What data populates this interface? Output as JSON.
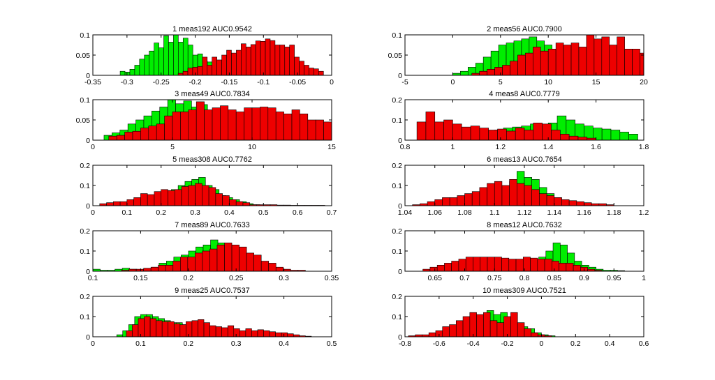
{
  "figure": {
    "background": "#ffffff"
  },
  "colors": {
    "series_a": "#00ee00",
    "series_b": "#ee0000",
    "edge": "#000000"
  },
  "chart_data": [
    {
      "type": "bar",
      "title": "1 meas192 AUC0.9542",
      "xlim": [
        -0.35,
        0
      ],
      "ylim": [
        0,
        0.1
      ],
      "xticks": [
        -0.35,
        -0.3,
        -0.25,
        -0.2,
        -0.15,
        -0.1,
        -0.05,
        0
      ],
      "xtick_labels": [
        "-0.35",
        "-0.3",
        "-0.25",
        "-0.2",
        "-0.15",
        "-0.1",
        "-0.05",
        "0"
      ],
      "yticks": [
        0,
        0.05,
        0.1
      ],
      "ytick_labels": [
        "0",
        "0.05",
        "0.1"
      ],
      "series": [
        {
          "color": "#00ee00",
          "x_start": -0.31,
          "bin_width": 0.0071,
          "values": [
            0.01,
            0.008,
            0.015,
            0.025,
            0.04,
            0.05,
            0.06,
            0.08,
            0.068,
            0.098,
            0.082,
            0.1,
            0.082,
            0.092,
            0.075,
            0.05,
            0.053,
            0.035,
            0.033,
            0.02,
            0.008,
            0.005
          ]
        },
        {
          "color": "#ee0000",
          "x_start": -0.225,
          "bin_width": 0.0071,
          "values": [
            0.005,
            0.01,
            0.018,
            0.02,
            0.022,
            0.045,
            0.025,
            0.045,
            0.038,
            0.05,
            0.062,
            0.055,
            0.062,
            0.078,
            0.07,
            0.076,
            0.085,
            0.084,
            0.09,
            0.086,
            0.075,
            0.075,
            0.07,
            0.075,
            0.045,
            0.035,
            0.025,
            0.018,
            0.016,
            0.01
          ]
        }
      ]
    },
    {
      "type": "bar",
      "title": "2 meas56 AUC0.7900",
      "xlim": [
        -5,
        20
      ],
      "ylim": [
        0,
        0.1
      ],
      "xticks": [
        -5,
        0,
        5,
        10,
        15,
        20
      ],
      "xtick_labels": [
        "-5",
        "0",
        "5",
        "10",
        "15",
        "20"
      ],
      "yticks": [
        0,
        0.05,
        0.1
      ],
      "ytick_labels": [
        "0",
        "0.05",
        "0.1"
      ],
      "series": [
        {
          "color": "#00ee00",
          "x_start": 0,
          "bin_width": 0.8,
          "values": [
            0.005,
            0.01,
            0.02,
            0.03,
            0.045,
            0.06,
            0.075,
            0.08,
            0.085,
            0.09,
            0.095,
            0.085,
            0.075,
            0.05,
            0.04,
            0.03,
            0.02,
            0.01,
            0.005
          ]
        },
        {
          "color": "#ee0000",
          "x_start": 2,
          "bin_width": 0.8,
          "values": [
            0.005,
            0.01,
            0.015,
            0.02,
            0.025,
            0.035,
            0.05,
            0.055,
            0.07,
            0.06,
            0.065,
            0.08,
            0.075,
            0.08,
            0.07,
            0.1,
            0.09,
            0.095,
            0.075,
            0.095,
            0.065,
            0.065,
            0.055,
            0.05,
            0.035,
            0.03
          ]
        }
      ]
    },
    {
      "type": "bar",
      "title": "3 meas49 AUC0.7834",
      "xlim": [
        0,
        15
      ],
      "ylim": [
        0,
        0.1
      ],
      "xticks": [
        0,
        5,
        10,
        15
      ],
      "xtick_labels": [
        "0",
        "5",
        "10",
        "15"
      ],
      "yticks": [
        0,
        0.05,
        0.1
      ],
      "ytick_labels": [
        "0",
        "0.05",
        "0.1"
      ],
      "series": [
        {
          "color": "#00ee00",
          "x_start": 0.7,
          "bin_width": 0.5,
          "values": [
            0.012,
            0.018,
            0.025,
            0.04,
            0.05,
            0.06,
            0.072,
            0.082,
            0.1,
            0.09,
            0.097,
            0.082,
            0.088,
            0.07,
            0.055,
            0.04,
            0.025,
            0.02,
            0.01
          ]
        },
        {
          "color": "#ee0000",
          "x_start": 1.0,
          "bin_width": 0.5,
          "values": [
            0.01,
            0.012,
            0.02,
            0.022,
            0.03,
            0.035,
            0.04,
            0.06,
            0.07,
            0.07,
            0.075,
            0.095,
            0.075,
            0.08,
            0.085,
            0.075,
            0.07,
            0.08,
            0.08,
            0.082,
            0.08,
            0.07,
            0.065,
            0.075,
            0.065,
            0.05,
            0.05,
            0.045,
            0.04
          ]
        }
      ]
    },
    {
      "type": "bar",
      "title": "4 meas8 AUC0.7779",
      "xlim": [
        0.8,
        1.8
      ],
      "ylim": [
        0,
        0.2
      ],
      "xticks": [
        0.8,
        1,
        1.2,
        1.4,
        1.6,
        1.8
      ],
      "xtick_labels": [
        "0.8",
        "1",
        "1.2",
        "1.4",
        "1.6",
        "1.8"
      ],
      "yticks": [
        0,
        0.1,
        0.2
      ],
      "ytick_labels": [
        "0",
        "0.1",
        "0.2"
      ],
      "series": [
        {
          "color": "#00ee00",
          "x_start": 0.95,
          "bin_width": 0.0375,
          "values": [
            0.01,
            0.015,
            0.02,
            0.03,
            0.04,
            0.045,
            0.05,
            0.06,
            0.065,
            0.07,
            0.08,
            0.075,
            0.085,
            0.12,
            0.1,
            0.08,
            0.07,
            0.06,
            0.055,
            0.05,
            0.04,
            0.03
          ]
        },
        {
          "color": "#ee0000",
          "x_start": 0.85,
          "bin_width": 0.0375,
          "values": [
            0.09,
            0.14,
            0.09,
            0.1,
            0.08,
            0.065,
            0.07,
            0.06,
            0.05,
            0.055,
            0.045,
            0.06,
            0.05,
            0.085,
            0.08,
            0.05,
            0.03,
            0.02,
            0.015,
            0.01
          ]
        }
      ]
    },
    {
      "type": "bar",
      "title": "5 meas308 AUC0.7762",
      "xlim": [
        0,
        0.7
      ],
      "ylim": [
        0,
        0.2
      ],
      "xticks": [
        0,
        0.1,
        0.2,
        0.3,
        0.4,
        0.5,
        0.6,
        0.7
      ],
      "xtick_labels": [
        "0",
        "0.1",
        "0.2",
        "0.3",
        "0.4",
        "0.5",
        "0.6",
        "0.7"
      ],
      "yticks": [
        0,
        0.1,
        0.2
      ],
      "ytick_labels": [
        "0",
        "0.1",
        "0.2"
      ],
      "series": [
        {
          "color": "#00ee00",
          "x_start": 0.15,
          "bin_width": 0.02,
          "values": [
            0.01,
            0.02,
            0.04,
            0.06,
            0.08,
            0.1,
            0.12,
            0.13,
            0.14,
            0.1,
            0.08,
            0.05,
            0.04,
            0.03,
            0.02,
            0.01,
            0.005
          ]
        },
        {
          "color": "#ee0000",
          "x_start": 0.02,
          "bin_width": 0.02,
          "values": [
            0.01,
            0.015,
            0.02,
            0.02,
            0.03,
            0.04,
            0.06,
            0.055,
            0.07,
            0.08,
            0.075,
            0.08,
            0.095,
            0.1,
            0.11,
            0.1,
            0.09,
            0.06,
            0.05,
            0.03,
            0.02,
            0.015,
            0.005,
            0.005,
            0.005,
            0.005,
            0.003,
            0.003,
            0.002,
            0.002,
            0.002,
            0.002,
            0.002
          ]
        }
      ]
    },
    {
      "type": "bar",
      "title": "6 meas13 AUC0.7654",
      "xlim": [
        1.04,
        1.2
      ],
      "ylim": [
        0,
        0.2
      ],
      "xticks": [
        1.04,
        1.06,
        1.08,
        1.1,
        1.12,
        1.14,
        1.16,
        1.18,
        1.2
      ],
      "xtick_labels": [
        "1.04",
        "1.06",
        "1.08",
        "1.1",
        "1.12",
        "1.14",
        "1.16",
        "1.18",
        "1.2"
      ],
      "yticks": [
        0,
        0.1,
        0.2
      ],
      "ytick_labels": [
        "0",
        "0.1",
        "0.2"
      ],
      "series": [
        {
          "color": "#00ee00",
          "x_start": 1.095,
          "bin_width": 0.005,
          "values": [
            0.02,
            0.05,
            0.07,
            0.12,
            0.17,
            0.14,
            0.13,
            0.09,
            0.06,
            0.04,
            0.03,
            0.02,
            0.01,
            0.005
          ]
        },
        {
          "color": "#ee0000",
          "x_start": 1.045,
          "bin_width": 0.005,
          "values": [
            0.005,
            0.01,
            0.02,
            0.03,
            0.04,
            0.04,
            0.05,
            0.06,
            0.07,
            0.09,
            0.11,
            0.12,
            0.1,
            0.13,
            0.11,
            0.1,
            0.08,
            0.06,
            0.05,
            0.04,
            0.03,
            0.025,
            0.02,
            0.015,
            0.01,
            0.01,
            0.005
          ]
        }
      ]
    },
    {
      "type": "bar",
      "title": "7 meas89 AUC0.7633",
      "xlim": [
        0.1,
        0.35
      ],
      "ylim": [
        0,
        0.2
      ],
      "xticks": [
        0.1,
        0.15,
        0.2,
        0.25,
        0.3,
        0.35
      ],
      "xtick_labels": [
        "0.1",
        "0.15",
        "0.2",
        "0.25",
        "0.3",
        "0.35"
      ],
      "yticks": [
        0,
        0.1,
        0.2
      ],
      "ytick_labels": [
        "0",
        "0.1",
        "0.2"
      ],
      "series": [
        {
          "color": "#00ee00",
          "x_start": 0.1,
          "bin_width": 0.0077,
          "values": [
            0.01,
            0.005,
            0.005,
            0.01,
            0.015,
            0.01,
            0.005,
            0.01,
            0.02,
            0.04,
            0.05,
            0.07,
            0.08,
            0.1,
            0.12,
            0.13,
            0.155,
            0.14,
            0.1,
            0.07,
            0.05,
            0.02,
            0.01
          ]
        },
        {
          "color": "#ee0000",
          "x_start": 0.13,
          "bin_width": 0.0077,
          "values": [
            0.005,
            0.01,
            0.01,
            0.015,
            0.02,
            0.03,
            0.03,
            0.05,
            0.07,
            0.07,
            0.09,
            0.1,
            0.11,
            0.13,
            0.14,
            0.13,
            0.12,
            0.09,
            0.08,
            0.05,
            0.04,
            0.02,
            0.01,
            0.005,
            0.005
          ]
        }
      ]
    },
    {
      "type": "bar",
      "title": "8 meas12 AUC0.7632",
      "xlim": [
        0.6,
        1
      ],
      "ylim": [
        0,
        0.2
      ],
      "xticks": [
        0.65,
        0.7,
        0.75,
        0.8,
        0.85,
        0.9,
        0.95,
        1
      ],
      "xtick_labels": [
        "0.65",
        "0.7",
        "0.75",
        "0.8",
        "0.85",
        "0.9",
        "0.95",
        "1"
      ],
      "yticks": [
        0,
        0.1,
        0.2
      ],
      "ytick_labels": [
        "0",
        "0.1",
        "0.2"
      ],
      "series": [
        {
          "color": "#00ee00",
          "x_start": 0.8,
          "bin_width": 0.012,
          "values": [
            0.03,
            0.05,
            0.07,
            0.1,
            0.14,
            0.13,
            0.09,
            0.05,
            0.03,
            0.02,
            0.01,
            0.005,
            0.005,
            0.003
          ]
        },
        {
          "color": "#ee0000",
          "x_start": 0.63,
          "bin_width": 0.012,
          "values": [
            0.01,
            0.02,
            0.03,
            0.04,
            0.05,
            0.06,
            0.07,
            0.07,
            0.07,
            0.07,
            0.07,
            0.065,
            0.06,
            0.06,
            0.07,
            0.065,
            0.06,
            0.06,
            0.05,
            0.04,
            0.04,
            0.03,
            0.02,
            0.01,
            0.005
          ]
        }
      ]
    },
    {
      "type": "bar",
      "title": "9 meas25 AUC0.7537",
      "xlim": [
        0,
        0.5
      ],
      "ylim": [
        0,
        0.2
      ],
      "xticks": [
        0,
        0.1,
        0.2,
        0.3,
        0.4,
        0.5
      ],
      "xtick_labels": [
        "0",
        "0.1",
        "0.2",
        "0.3",
        "0.4",
        "0.5"
      ],
      "yticks": [
        0,
        0.1,
        0.2
      ],
      "ytick_labels": [
        "0",
        "0.1",
        "0.2"
      ],
      "series": [
        {
          "color": "#00ee00",
          "x_start": 0.05,
          "bin_width": 0.0125,
          "values": [
            0.01,
            0.03,
            0.06,
            0.1,
            0.11,
            0.11,
            0.1,
            0.09,
            0.08,
            0.07,
            0.07,
            0.06,
            0.05,
            0.04,
            0.03,
            0.02,
            0.02,
            0.01,
            0.01,
            0.005,
            0.005,
            0.003,
            0.003,
            0.002
          ]
        },
        {
          "color": "#ee0000",
          "x_start": 0.07,
          "bin_width": 0.0125,
          "values": [
            0.03,
            0.06,
            0.09,
            0.1,
            0.09,
            0.08,
            0.075,
            0.075,
            0.065,
            0.06,
            0.075,
            0.08,
            0.085,
            0.07,
            0.055,
            0.05,
            0.045,
            0.055,
            0.04,
            0.03,
            0.04,
            0.03,
            0.035,
            0.03,
            0.025,
            0.02,
            0.02,
            0.015,
            0.01,
            0.005,
            0.003
          ]
        }
      ]
    },
    {
      "type": "bar",
      "title": "10 meas309 AUC0.7521",
      "xlim": [
        -0.8,
        0.6
      ],
      "ylim": [
        0,
        0.2
      ],
      "xticks": [
        -0.8,
        -0.6,
        -0.4,
        -0.2,
        0,
        0.2,
        0.4,
        0.6
      ],
      "xtick_labels": [
        "-0.8",
        "-0.6",
        "-0.4",
        "-0.2",
        "0",
        "0.2",
        "0.4",
        "0.6"
      ],
      "yticks": [
        0,
        0.1,
        0.2
      ],
      "ytick_labels": [
        "0",
        "0.1",
        "0.2"
      ],
      "series": [
        {
          "color": "#00ee00",
          "x_start": -0.6,
          "bin_width": 0.04,
          "values": [
            0.01,
            0.02,
            0.03,
            0.05,
            0.06,
            0.08,
            0.1,
            0.13,
            0.11,
            0.12,
            0.08,
            0.06,
            0.05,
            0.04,
            0.02,
            0.01,
            0.005
          ]
        },
        {
          "color": "#ee0000",
          "x_start": -0.78,
          "bin_width": 0.04,
          "values": [
            0.005,
            0.01,
            0.01,
            0.02,
            0.03,
            0.05,
            0.06,
            0.08,
            0.1,
            0.12,
            0.11,
            0.12,
            0.08,
            0.07,
            0.1,
            0.12,
            0.07,
            0.04,
            0.02,
            0.01,
            0.005
          ]
        }
      ]
    }
  ]
}
